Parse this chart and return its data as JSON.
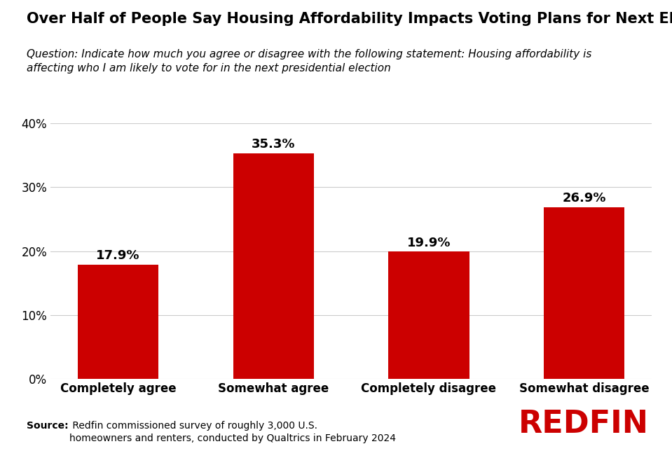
{
  "title": "Over Half of People Say Housing Affordability Impacts Voting Plans for Next Election",
  "subtitle": "Question: Indicate how much you agree or disagree with the following statement: Housing affordability is\naffecting who I am likely to vote for in the next presidential election",
  "categories": [
    "Completely agree",
    "Somewhat agree",
    "Completely disagree",
    "Somewhat disagree"
  ],
  "values": [
    17.9,
    35.3,
    19.9,
    26.9
  ],
  "bar_color": "#CC0000",
  "ylim": [
    0,
    40
  ],
  "yticks": [
    0,
    10,
    20,
    30,
    40
  ],
  "ytick_labels": [
    "0%",
    "10%",
    "20%",
    "30%",
    "40%"
  ],
  "background_color": "#FFFFFF",
  "title_fontsize": 15,
  "subtitle_fontsize": 11,
  "label_fontsize": 12,
  "value_label_fontsize": 13,
  "source_bold": "Source:",
  "source_rest": " Redfin commissioned survey of roughly 3,000 U.S.\nhomeowners and renters, conducted by Qualtrics in February 2024",
  "redfin_logo_text": "REDFIN",
  "redfin_color": "#CC0000"
}
